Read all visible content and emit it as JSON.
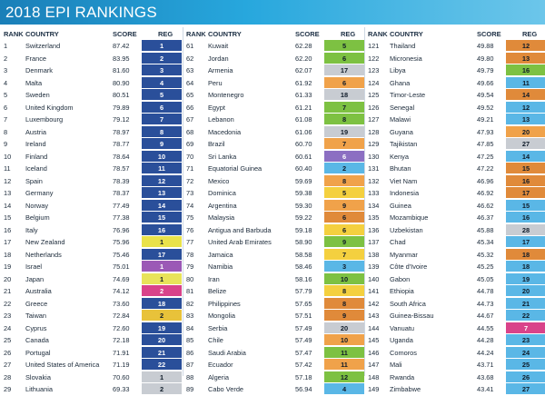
{
  "title": "2018 EPI RANKINGS",
  "headers": {
    "rank": "RANK",
    "country": "COUNTRY",
    "score": "SCORE",
    "reg": "REG"
  },
  "columns": [
    [
      {
        "rank": "1",
        "country": "Switzerland",
        "score": "87.42",
        "reg": "1",
        "color": "#2a4f9a"
      },
      {
        "rank": "2",
        "country": "France",
        "score": "83.95",
        "reg": "2",
        "color": "#2a4f9a"
      },
      {
        "rank": "3",
        "country": "Denmark",
        "score": "81.60",
        "reg": "3",
        "color": "#2a4f9a"
      },
      {
        "rank": "4",
        "country": "Malta",
        "score": "80.90",
        "reg": "4",
        "color": "#2a4f9a"
      },
      {
        "rank": "5",
        "country": "Sweden",
        "score": "80.51",
        "reg": "5",
        "color": "#2a4f9a"
      },
      {
        "rank": "6",
        "country": "United Kingdom",
        "score": "79.89",
        "reg": "6",
        "color": "#2a4f9a"
      },
      {
        "rank": "7",
        "country": "Luxembourg",
        "score": "79.12",
        "reg": "7",
        "color": "#2a4f9a"
      },
      {
        "rank": "8",
        "country": "Austria",
        "score": "78.97",
        "reg": "8",
        "color": "#2a4f9a"
      },
      {
        "rank": "9",
        "country": "Ireland",
        "score": "78.77",
        "reg": "9",
        "color": "#2a4f9a"
      },
      {
        "rank": "10",
        "country": "Finland",
        "score": "78.64",
        "reg": "10",
        "color": "#2a4f9a"
      },
      {
        "rank": "11",
        "country": "Iceland",
        "score": "78.57",
        "reg": "11",
        "color": "#2a4f9a"
      },
      {
        "rank": "12",
        "country": "Spain",
        "score": "78.39",
        "reg": "12",
        "color": "#2a4f9a"
      },
      {
        "rank": "13",
        "country": "Germany",
        "score": "78.37",
        "reg": "13",
        "color": "#2a4f9a"
      },
      {
        "rank": "14",
        "country": "Norway",
        "score": "77.49",
        "reg": "14",
        "color": "#2a4f9a"
      },
      {
        "rank": "15",
        "country": "Belgium",
        "score": "77.38",
        "reg": "15",
        "color": "#2a4f9a"
      },
      {
        "rank": "16",
        "country": "Italy",
        "score": "76.96",
        "reg": "16",
        "color": "#2a4f9a"
      },
      {
        "rank": "17",
        "country": "New Zealand",
        "score": "75.96",
        "reg": "1",
        "color": "#e9e24a"
      },
      {
        "rank": "18",
        "country": "Netherlands",
        "score": "75.46",
        "reg": "17",
        "color": "#2a4f9a"
      },
      {
        "rank": "19",
        "country": "Israel",
        "score": "75.01",
        "reg": "1",
        "color": "#9b59b6"
      },
      {
        "rank": "20",
        "country": "Japan",
        "score": "74.69",
        "reg": "1",
        "color": "#e8e35a"
      },
      {
        "rank": "21",
        "country": "Australia",
        "score": "74.12",
        "reg": "2",
        "color": "#d9438a"
      },
      {
        "rank": "22",
        "country": "Greece",
        "score": "73.60",
        "reg": "18",
        "color": "#2a4f9a"
      },
      {
        "rank": "23",
        "country": "Taiwan",
        "score": "72.84",
        "reg": "2",
        "color": "#e8c23a"
      },
      {
        "rank": "24",
        "country": "Cyprus",
        "score": "72.60",
        "reg": "19",
        "color": "#2a4f9a"
      },
      {
        "rank": "25",
        "country": "Canada",
        "score": "72.18",
        "reg": "20",
        "color": "#2a4f9a"
      },
      {
        "rank": "26",
        "country": "Portugal",
        "score": "71.91",
        "reg": "21",
        "color": "#2a4f9a"
      },
      {
        "rank": "27",
        "country": "United States of America",
        "score": "71.19",
        "reg": "22",
        "color": "#2a4f9a"
      },
      {
        "rank": "28",
        "country": "Slovakia",
        "score": "70.60",
        "reg": "1",
        "color": "#c8ccd2"
      },
      {
        "rank": "29",
        "country": "Lithuania",
        "score": "69.33",
        "reg": "2",
        "color": "#c8ccd2"
      }
    ],
    [
      {
        "rank": "61",
        "country": "Kuwait",
        "score": "62.28",
        "reg": "5",
        "color": "#7dc142"
      },
      {
        "rank": "62",
        "country": "Jordan",
        "score": "62.20",
        "reg": "6",
        "color": "#7dc142"
      },
      {
        "rank": "63",
        "country": "Armenia",
        "score": "62.07",
        "reg": "17",
        "color": "#c8ccd2"
      },
      {
        "rank": "64",
        "country": "Peru",
        "score": "61.92",
        "reg": "6",
        "color": "#f0a24a"
      },
      {
        "rank": "65",
        "country": "Montenegro",
        "score": "61.33",
        "reg": "18",
        "color": "#c8ccd2"
      },
      {
        "rank": "66",
        "country": "Egypt",
        "score": "61.21",
        "reg": "7",
        "color": "#7dc142"
      },
      {
        "rank": "67",
        "country": "Lebanon",
        "score": "61.08",
        "reg": "8",
        "color": "#7dc142"
      },
      {
        "rank": "68",
        "country": "Macedonia",
        "score": "61.06",
        "reg": "19",
        "color": "#c8ccd2"
      },
      {
        "rank": "69",
        "country": "Brazil",
        "score": "60.70",
        "reg": "7",
        "color": "#f0a24a"
      },
      {
        "rank": "70",
        "country": "Sri Lanka",
        "score": "60.61",
        "reg": "6",
        "color": "#8c6fc2"
      },
      {
        "rank": "71",
        "country": "Equatorial Guinea",
        "score": "60.40",
        "reg": "2",
        "color": "#5ab7e6"
      },
      {
        "rank": "72",
        "country": "Mexico",
        "score": "59.69",
        "score_raw": "",
        "reg": "8",
        "color": "#f0a24a"
      },
      {
        "rank": "73",
        "country": "Dominica",
        "score": "59.38",
        "reg": "5",
        "color": "#f4d03f"
      },
      {
        "rank": "74",
        "country": "Argentina",
        "score": "59.30",
        "reg": "9",
        "color": "#f0a24a"
      },
      {
        "rank": "75",
        "country": "Malaysia",
        "score": "59.22",
        "reg": "6",
        "color": "#e08a3a"
      },
      {
        "rank": "76",
        "country": "Antigua and Barbuda",
        "score": "59.18",
        "reg": "6",
        "color": "#f4d03f"
      },
      {
        "rank": "77",
        "country": "United Arab Emirates",
        "score": "58.90",
        "reg": "9",
        "color": "#7dc142"
      },
      {
        "rank": "78",
        "country": "Jamaica",
        "score": "58.58",
        "reg": "7",
        "color": "#f4d03f"
      },
      {
        "rank": "79",
        "country": "Namibia",
        "score": "58.46",
        "reg": "3",
        "color": "#5ab7e6"
      },
      {
        "rank": "80",
        "country": "Iran",
        "score": "58.16",
        "reg": "10",
        "color": "#7dc142"
      },
      {
        "rank": "81",
        "country": "Belize",
        "score": "57.79",
        "reg": "8",
        "color": "#f4d03f"
      },
      {
        "rank": "82",
        "country": "Philippines",
        "score": "57.65",
        "reg": "8",
        "color": "#e08a3a"
      },
      {
        "rank": "83",
        "country": "Mongolia",
        "score": "57.51",
        "reg": "9",
        "color": "#e08a3a"
      },
      {
        "rank": "84",
        "country": "Serbia",
        "score": "57.49",
        "reg": "20",
        "color": "#c8ccd2"
      },
      {
        "rank": "85",
        "country": "Chile",
        "score": "57.49",
        "reg": "10",
        "color": "#f0a24a"
      },
      {
        "rank": "86",
        "country": "Saudi Arabia",
        "score": "57.47",
        "reg": "11",
        "color": "#7dc142"
      },
      {
        "rank": "87",
        "country": "Ecuador",
        "score": "57.42",
        "reg": "11",
        "color": "#f0a24a"
      },
      {
        "rank": "88",
        "country": "Algeria",
        "score": "57.18",
        "reg": "12",
        "color": "#7dc142"
      },
      {
        "rank": "89",
        "country": "Cabo Verde",
        "score": "56.94",
        "reg": "4",
        "color": "#5ab7e6"
      }
    ],
    [
      {
        "rank": "121",
        "country": "Thailand",
        "score": "49.88",
        "reg": "12",
        "color": "#e08a3a"
      },
      {
        "rank": "122",
        "country": "Micronesia",
        "score": "49.80",
        "reg": "13",
        "color": "#e08a3a"
      },
      {
        "rank": "123",
        "country": "Libya",
        "score": "49.79",
        "reg": "16",
        "color": "#7dc142"
      },
      {
        "rank": "124",
        "country": "Ghana",
        "score": "49.66",
        "reg": "11",
        "color": "#5ab7e6"
      },
      {
        "rank": "125",
        "country": "Timor-Leste",
        "score": "49.54",
        "reg": "14",
        "color": "#e08a3a"
      },
      {
        "rank": "126",
        "country": "Senegal",
        "score": "49.52",
        "reg": "12",
        "color": "#5ab7e6"
      },
      {
        "rank": "127",
        "country": "Malawi",
        "score": "49.21",
        "reg": "13",
        "color": "#5ab7e6"
      },
      {
        "rank": "128",
        "country": "Guyana",
        "score": "47.93",
        "reg": "20",
        "color": "#f0a24a"
      },
      {
        "rank": "129",
        "country": "Tajikistan",
        "score": "47.85",
        "reg": "27",
        "color": "#c8ccd2"
      },
      {
        "rank": "130",
        "country": "Kenya",
        "score": "47.25",
        "reg": "14",
        "color": "#5ab7e6"
      },
      {
        "rank": "131",
        "country": "Bhutan",
        "score": "47.22",
        "reg": "15",
        "color": "#e08a3a"
      },
      {
        "rank": "132",
        "country": "Viet Nam",
        "score": "46.96",
        "reg": "16",
        "color": "#e08a3a"
      },
      {
        "rank": "133",
        "country": "Indonesia",
        "score": "46.92",
        "reg": "17",
        "color": "#e08a3a"
      },
      {
        "rank": "134",
        "country": "Guinea",
        "score": "46.62",
        "reg": "15",
        "color": "#5ab7e6"
      },
      {
        "rank": "135",
        "country": "Mozambique",
        "score": "46.37",
        "reg": "16",
        "color": "#5ab7e6"
      },
      {
        "rank": "136",
        "country": "Uzbekistan",
        "score": "45.88",
        "reg": "28",
        "color": "#c8ccd2"
      },
      {
        "rank": "137",
        "country": "Chad",
        "score": "45.34",
        "reg": "17",
        "color": "#5ab7e6"
      },
      {
        "rank": "138",
        "country": "Myanmar",
        "score": "45.32",
        "reg": "18",
        "color": "#e08a3a"
      },
      {
        "rank": "139",
        "country": "Côte d'Ivoire",
        "score": "45.25",
        "reg": "18",
        "color": "#5ab7e6"
      },
      {
        "rank": "140",
        "country": "Gabon",
        "score": "45.05",
        "reg": "19",
        "color": "#5ab7e6"
      },
      {
        "rank": "141",
        "country": "Ethiopia",
        "score": "44.78",
        "reg": "20",
        "color": "#5ab7e6"
      },
      {
        "rank": "142",
        "country": "South Africa",
        "score": "44.73",
        "reg": "21",
        "color": "#5ab7e6"
      },
      {
        "rank": "143",
        "country": "Guinea-Bissau",
        "score": "44.67",
        "reg": "22",
        "color": "#5ab7e6"
      },
      {
        "rank": "144",
        "country": "Vanuatu",
        "score": "44.55",
        "reg": "7",
        "color": "#d9438a"
      },
      {
        "rank": "145",
        "country": "Uganda",
        "score": "44.28",
        "reg": "23",
        "color": "#5ab7e6"
      },
      {
        "rank": "146",
        "country": "Comoros",
        "score": "44.24",
        "reg": "24",
        "color": "#5ab7e6"
      },
      {
        "rank": "147",
        "country": "Mali",
        "score": "43.71",
        "reg": "25",
        "color": "#5ab7e6"
      },
      {
        "rank": "148",
        "country": "Rwanda",
        "score": "43.68",
        "reg": "26",
        "color": "#5ab7e6"
      },
      {
        "rank": "149",
        "country": "Zimbabwe",
        "score": "43.41",
        "reg": "27",
        "color": "#5ab7e6"
      }
    ]
  ]
}
